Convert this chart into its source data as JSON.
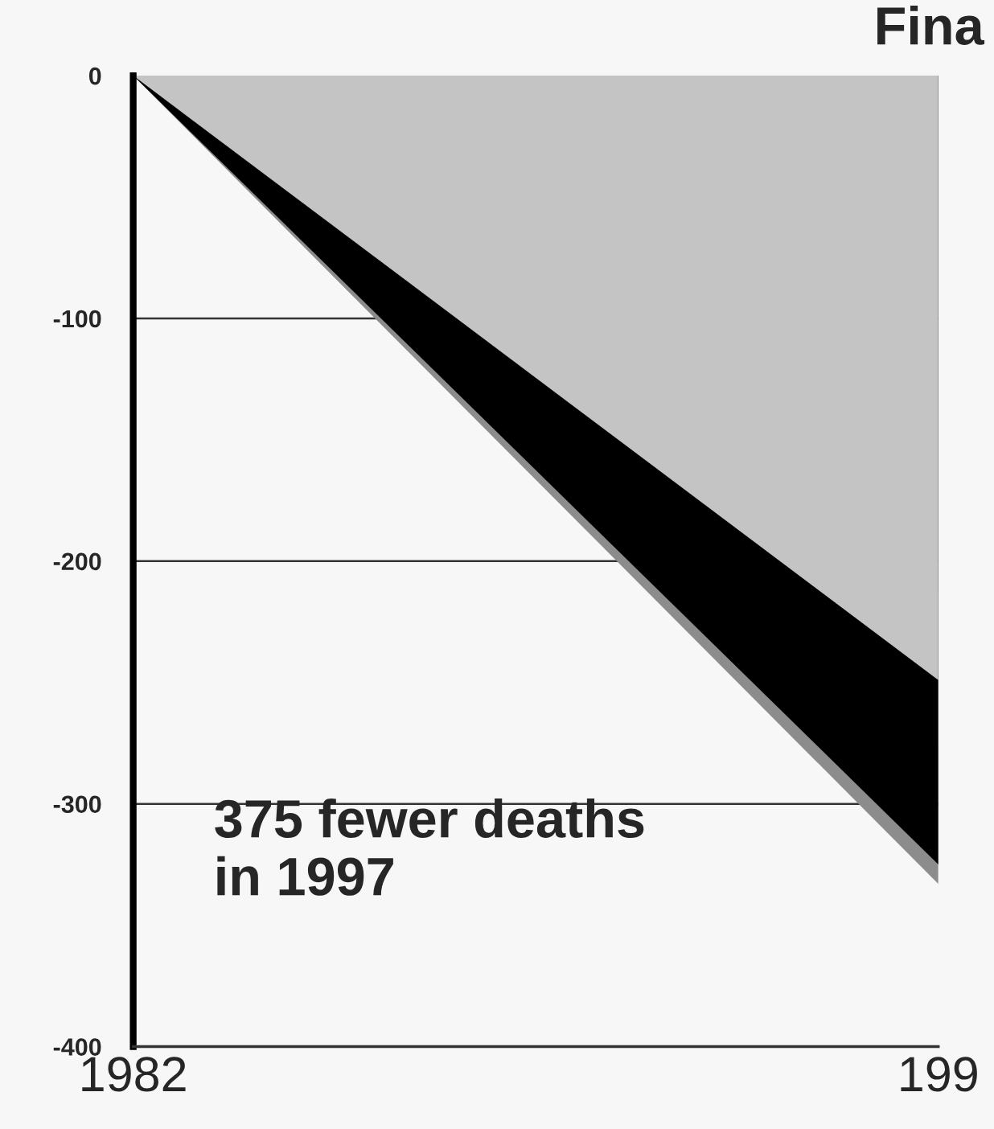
{
  "chart_data": {
    "type": "area",
    "title": "Fina",
    "categories": [
      "1982",
      "199"
    ],
    "series": [
      {
        "color": "#8c8c8c",
        "values": [
          0,
          -333
        ]
      },
      {
        "color": "#000000",
        "values": [
          0,
          -325
        ]
      },
      {
        "color": "#c4c4c4",
        "values": [
          0,
          -249
        ]
      }
    ],
    "ylim": [
      -400,
      0
    ],
    "yticks": [
      0,
      -100,
      -200,
      -300,
      -400
    ],
    "ref_lines": [
      {
        "axis": "y",
        "value": -100,
        "color": "#333333"
      },
      {
        "axis": "y",
        "value": -200,
        "color": "#333333"
      },
      {
        "axis": "y",
        "value": -300,
        "color": "#333333"
      }
    ],
    "legend": false,
    "annotations": [
      "375 fewer deaths\nin 1997"
    ]
  }
}
